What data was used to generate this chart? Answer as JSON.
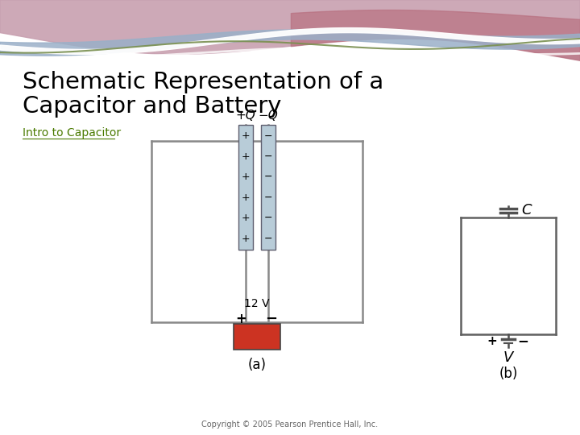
{
  "title_line1": "Schematic Representation of a",
  "title_line2": "Capacitor and Battery",
  "subtitle": "Intro to Capacitor",
  "bg_color": "#ffffff",
  "title_color": "#000000",
  "subtitle_color": "#4a7a00",
  "copyright": "Copyright © 2005 Pearson Prentice Hall, Inc.",
  "label_a": "(a)",
  "label_b": "(b)",
  "charge_label_plus": "+Q",
  "charge_label_minus": "−Q",
  "battery_label": "12 V",
  "cap_symbol": "C",
  "volt_symbol": "V",
  "wire_color": "#888888",
  "plate_color": "#b8ccd8",
  "battery_color": "#cc3322"
}
